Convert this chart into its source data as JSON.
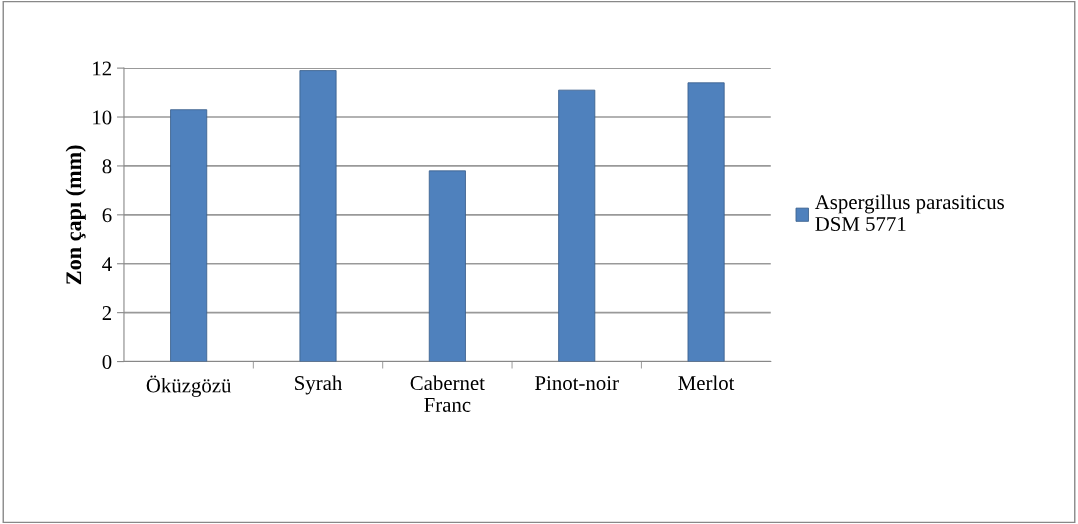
{
  "chart_data": {
    "type": "bar",
    "ylabel": "Zon çapı (mm)",
    "categories": [
      "Öküzgözü",
      "Syrah",
      "Cabernet\nFranc",
      "Pinot-noir",
      "Merlot"
    ],
    "series": [
      {
        "name": "Aspergillus parasiticus\nDSM 5771",
        "color": "#4f81bd",
        "values": [
          10.3,
          11.9,
          7.8,
          11.1,
          11.4
        ]
      }
    ],
    "ylim": [
      0,
      12
    ],
    "yticks": [
      0,
      2,
      4,
      6,
      8,
      10,
      12
    ],
    "grid": "y",
    "legend": "right"
  }
}
